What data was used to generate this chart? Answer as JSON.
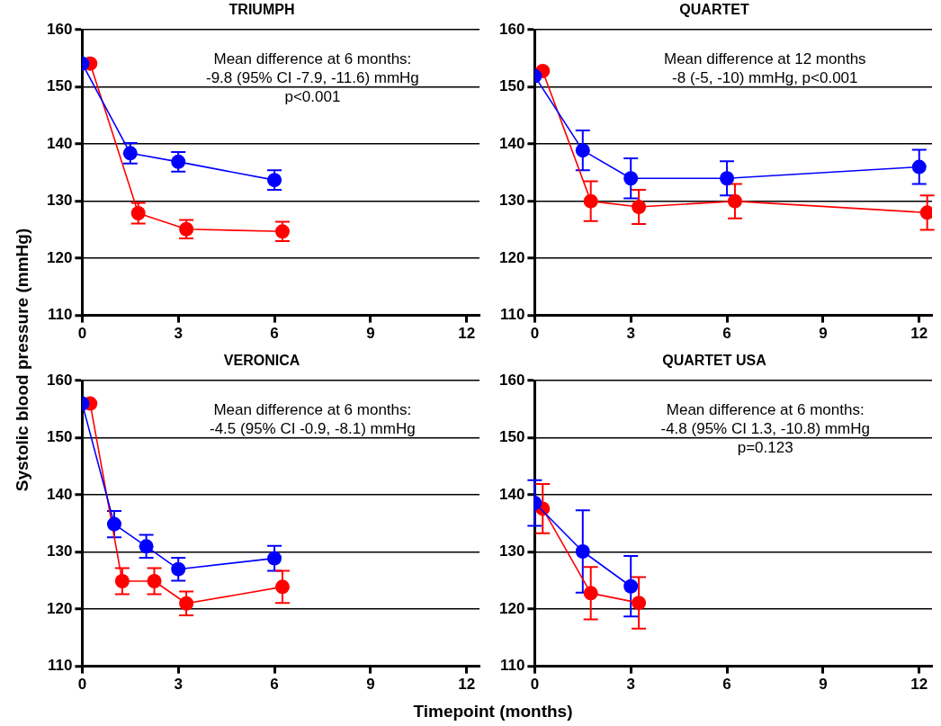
{
  "chart_data": [
    {
      "type": "line",
      "title": "TRIUMPH",
      "ylabel": "Systolic blood pressure (mmHg)",
      "xlim": [
        0,
        12.4
      ],
      "xticks": [
        0,
        3,
        6,
        9,
        12
      ],
      "ylim": [
        110,
        160
      ],
      "yticks": [
        110,
        120,
        130,
        140,
        150,
        160
      ],
      "grid": "y",
      "marker": "circle",
      "annotations": [
        "Mean difference at 6 months:",
        "-9.8 (95% CI -7.9, -11.6) mmHg",
        "p<0.001"
      ],
      "series": [
        {
          "color": "#0000ff",
          "x": [
            0,
            1.5,
            3,
            6
          ],
          "values": [
            154.1,
            138.4,
            136.9,
            133.7
          ],
          "errors": [
            null,
            1.8,
            1.7,
            1.7
          ]
        },
        {
          "color": "#ff0000",
          "x": [
            0.25,
            1.75,
            3.25,
            6.25
          ],
          "values": [
            154.1,
            127.9,
            125.1,
            124.7
          ],
          "errors": [
            null,
            1.8,
            1.6,
            1.7
          ]
        }
      ]
    },
    {
      "type": "line",
      "title": "QUARTET",
      "xlim": [
        0,
        12.4
      ],
      "xticks": [
        0,
        3,
        6,
        9,
        12
      ],
      "ylim": [
        110,
        160
      ],
      "yticks": [
        110,
        120,
        130,
        140,
        150,
        160
      ],
      "grid": "y",
      "marker": "circle",
      "annotations": [
        "Mean difference at 12 months",
        "-8 (-5, -10) mmHg, p<0.001"
      ],
      "series": [
        {
          "color": "#0000ff",
          "x": [
            0,
            1.5,
            3,
            6,
            12
          ],
          "values": [
            151.9,
            138.9,
            134,
            134,
            136
          ],
          "errors": [
            null,
            3.5,
            3.5,
            3,
            3
          ]
        },
        {
          "color": "#ff0000",
          "x": [
            0.25,
            1.75,
            3.25,
            6.25,
            12.25
          ],
          "values": [
            152.8,
            130,
            129,
            130,
            128
          ],
          "errors": [
            null,
            3.5,
            3,
            3,
            3
          ]
        }
      ]
    },
    {
      "type": "line",
      "title": "VERONICA",
      "xlim": [
        0,
        12.4
      ],
      "xticks": [
        0,
        3,
        6,
        9,
        12
      ],
      "ylim": [
        110,
        160
      ],
      "yticks": [
        110,
        120,
        130,
        140,
        150,
        160
      ],
      "grid": "y",
      "marker": "circle",
      "annotations": [
        "Mean difference at 6 months:",
        "-4.5 (95% CI -0.9, -8.1) mmHg"
      ],
      "series": [
        {
          "color": "#0000ff",
          "x": [
            0,
            1,
            2,
            3,
            6
          ],
          "values": [
            156,
            134.9,
            131,
            127,
            128.9
          ],
          "errors": [
            null,
            2.3,
            2,
            2,
            2.2
          ]
        },
        {
          "color": "#ff0000",
          "x": [
            0.25,
            1.25,
            2.25,
            3.25,
            6.25
          ],
          "values": [
            156,
            124.9,
            124.9,
            121,
            123.9
          ],
          "errors": [
            null,
            2.3,
            2.3,
            2.1,
            2.8
          ]
        }
      ]
    },
    {
      "type": "line",
      "title": "QUARTET USA",
      "xlabel": "Timepoint (months)",
      "xlim": [
        0,
        12.4
      ],
      "xticks": [
        0,
        3,
        6,
        9,
        12
      ],
      "ylim": [
        110,
        160
      ],
      "yticks": [
        110,
        120,
        130,
        140,
        150,
        160
      ],
      "grid": "y",
      "marker": "circle",
      "annotations": [
        "Mean difference at 6 months:",
        "-4.8 (95% CI 1.3, -10.8) mmHg",
        "p=0.123"
      ],
      "series": [
        {
          "color": "#0000ff",
          "x": [
            0,
            1.5,
            3
          ],
          "values": [
            138.6,
            130.1,
            124
          ],
          "errors": [
            4,
            7.2,
            5.3
          ]
        },
        {
          "color": "#ff0000",
          "x": [
            0.25,
            1.75,
            3.25
          ],
          "values": [
            137.6,
            122.8,
            121.1
          ],
          "errors": [
            4.3,
            4.6,
            4.5
          ]
        }
      ]
    }
  ]
}
